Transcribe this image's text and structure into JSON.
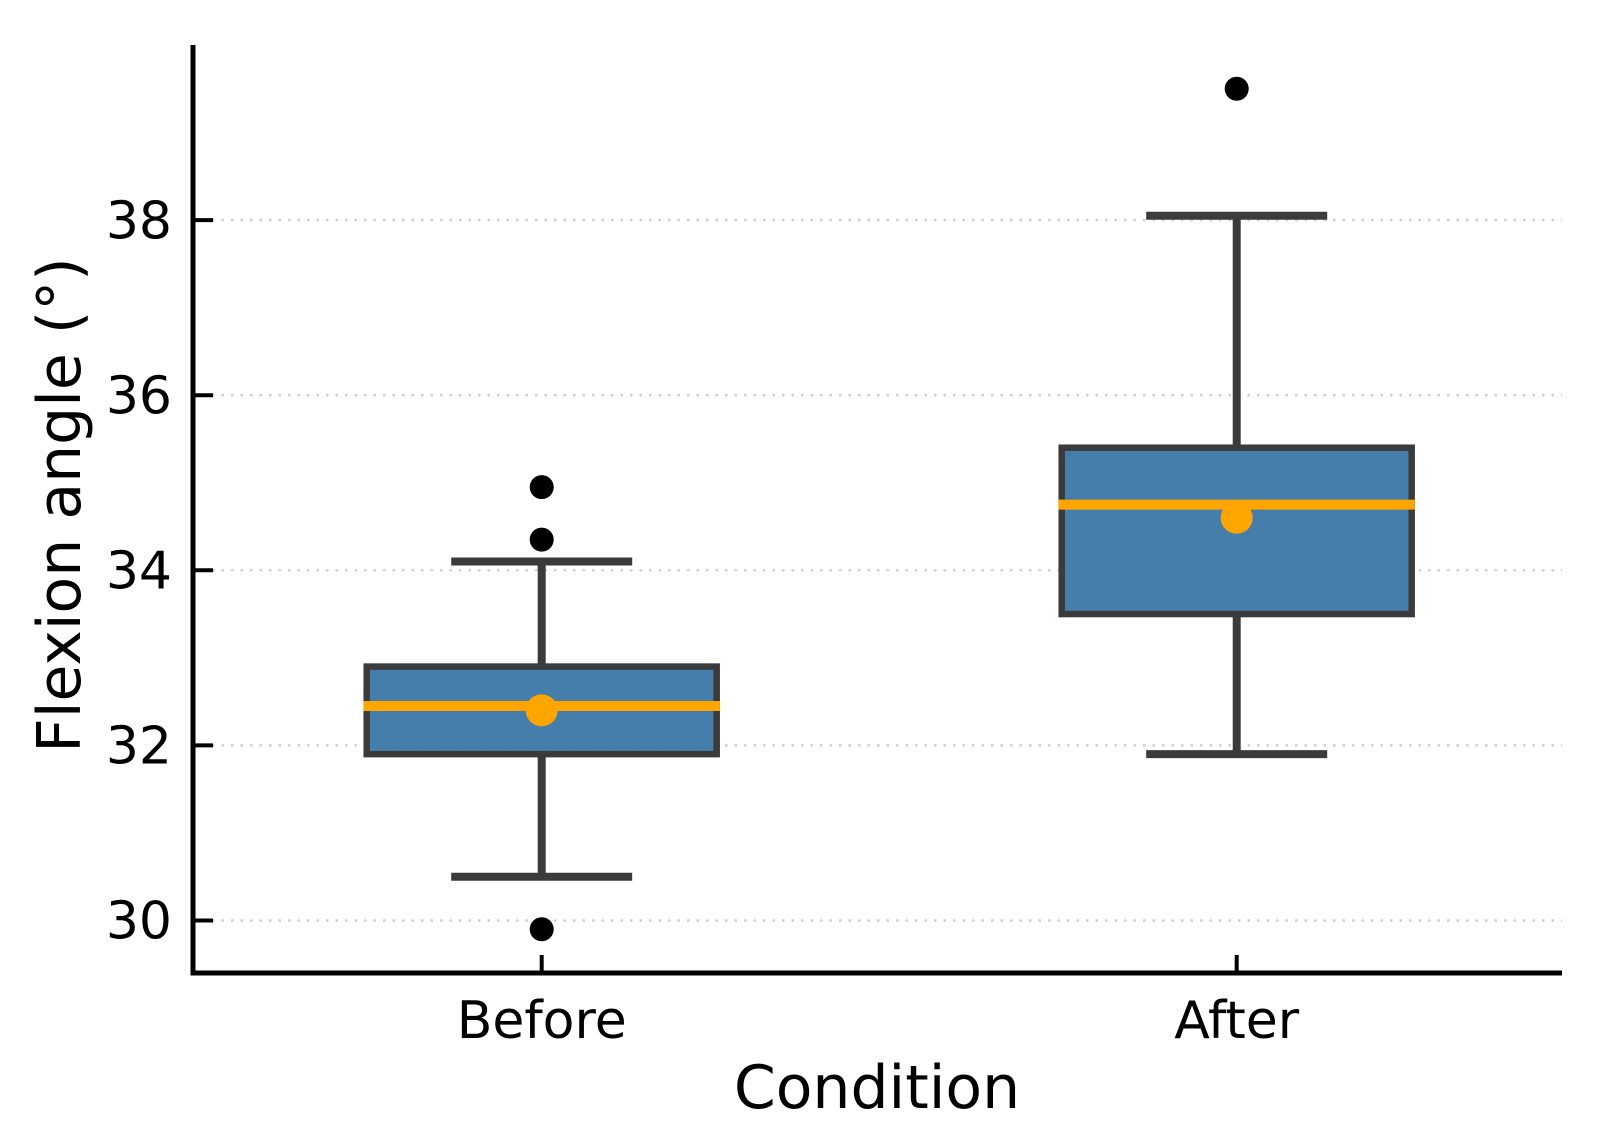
{
  "figure": {
    "background": "#FFFFFF"
  },
  "chart_data": {
    "type": "boxplot",
    "title": "",
    "xlabel": "Condition",
    "ylabel": "Flexion angle (°)",
    "categories": [
      "Before",
      "After"
    ],
    "yticks": [
      30,
      32,
      34,
      36,
      38
    ],
    "ylim": [
      29.4,
      40.0
    ],
    "grid": {
      "horizontal": true,
      "style": "dotted"
    },
    "legend": "none",
    "series": [
      {
        "name": "Before",
        "whisker_low": 30.5,
        "q1": 31.9,
        "median": 32.45,
        "q3": 32.9,
        "whisker_high": 34.1,
        "mean": 32.4,
        "outliers": [
          29.9,
          34.35,
          34.95
        ]
      },
      {
        "name": "After",
        "whisker_low": 31.9,
        "q1": 33.5,
        "median": 34.75,
        "q3": 35.4,
        "whisker_high": 38.05,
        "mean": 34.6,
        "outliers": [
          39.5
        ]
      }
    ],
    "colors": {
      "box_fill": "#3B77A6",
      "box_edge": "#3B3B3B",
      "whisker": "#3B3B3B",
      "median": "#FFA500",
      "mean_marker": "#FFA500",
      "outlier": "#000000",
      "grid": "#CFCFCF",
      "axis": "#000000",
      "text": "#000000"
    }
  }
}
